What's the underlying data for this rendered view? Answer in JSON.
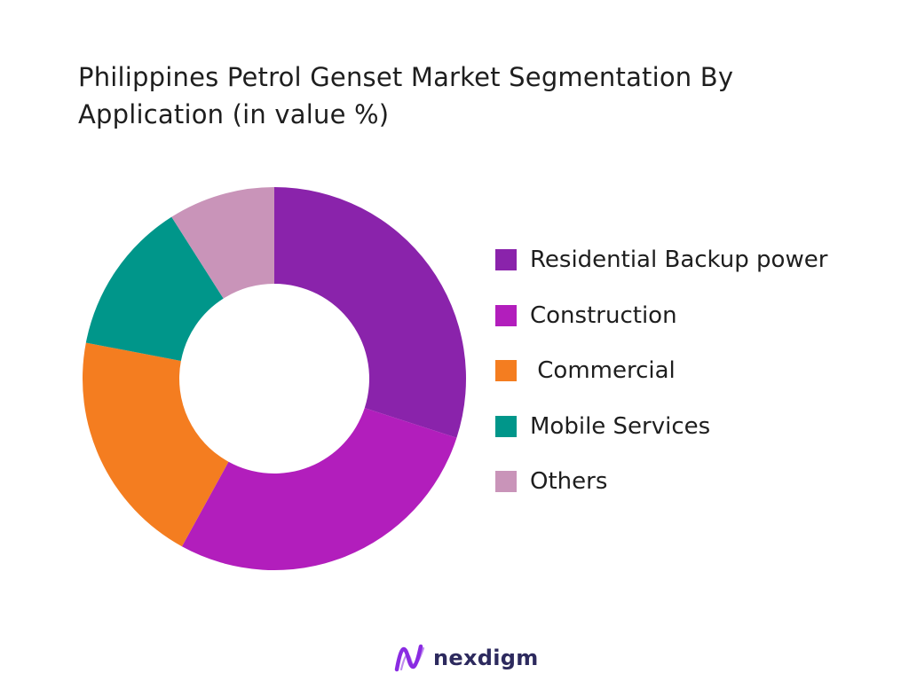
{
  "chart_data": {
    "type": "pie",
    "title": "Philippines Petrol Genset Market Segmentation By Application (in value %)",
    "donut": true,
    "legend_position": "right",
    "categories": [
      "Residential Backup power",
      "Construction",
      " Commercial",
      "Mobile Services",
      "Others"
    ],
    "values": [
      30,
      28,
      20,
      13,
      9
    ],
    "colors": [
      "#8a23ab",
      "#b21ebc",
      "#f47d20",
      "#00968a",
      "#c994b9"
    ]
  },
  "brand": {
    "name": "nexdigm",
    "logo_icon": "nexdigm-wave-logo",
    "logo_color": "#8a2be2"
  }
}
